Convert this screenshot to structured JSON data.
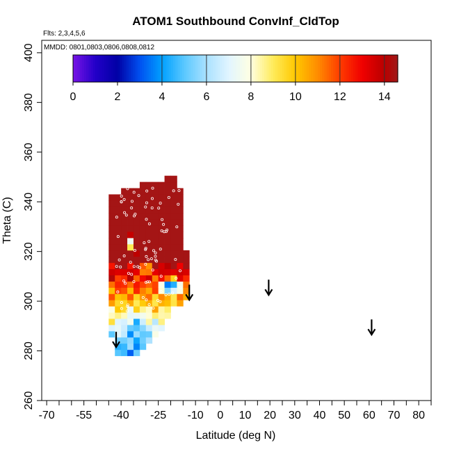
{
  "chart_data": {
    "type": "heatmap",
    "title": "ATOM1 Southbound ConvInf_CldTop",
    "flights_note": "Flts: 2,3,4,5,6",
    "dates_note": "MMDD: 0801,0803,0806,0808,0812",
    "xlabel": "Latitude (deg N)",
    "ylabel": "Theta (C)",
    "xlim": [
      -72,
      85
    ],
    "ylim": [
      260,
      405
    ],
    "x_ticks": [
      -70,
      -55,
      -40,
      -25,
      -10,
      0,
      10,
      20,
      30,
      40,
      50,
      60,
      70,
      80
    ],
    "x_minor_ticks": [
      -65,
      -60,
      -50,
      -45,
      -35,
      -30,
      -20,
      -15,
      -5,
      5,
      15,
      25,
      35,
      45,
      55,
      65,
      75,
      85
    ],
    "y_ticks": [
      260,
      280,
      300,
      320,
      340,
      360,
      380,
      400
    ],
    "colorbar": {
      "min": 0,
      "max": 14.6,
      "ticks": [
        0,
        2,
        4,
        6,
        8,
        10,
        12,
        14
      ],
      "divisions": [
        4,
        6,
        8,
        10,
        12,
        14
      ]
    },
    "arrows": [
      {
        "lat": -42,
        "theta": 283
      },
      {
        "lat": -12.5,
        "theta": 302
      },
      {
        "lat": 19.5,
        "theta": 304
      },
      {
        "lat": 61,
        "theta": 288
      }
    ],
    "grid": false,
    "legend": "top colorbar"
  }
}
